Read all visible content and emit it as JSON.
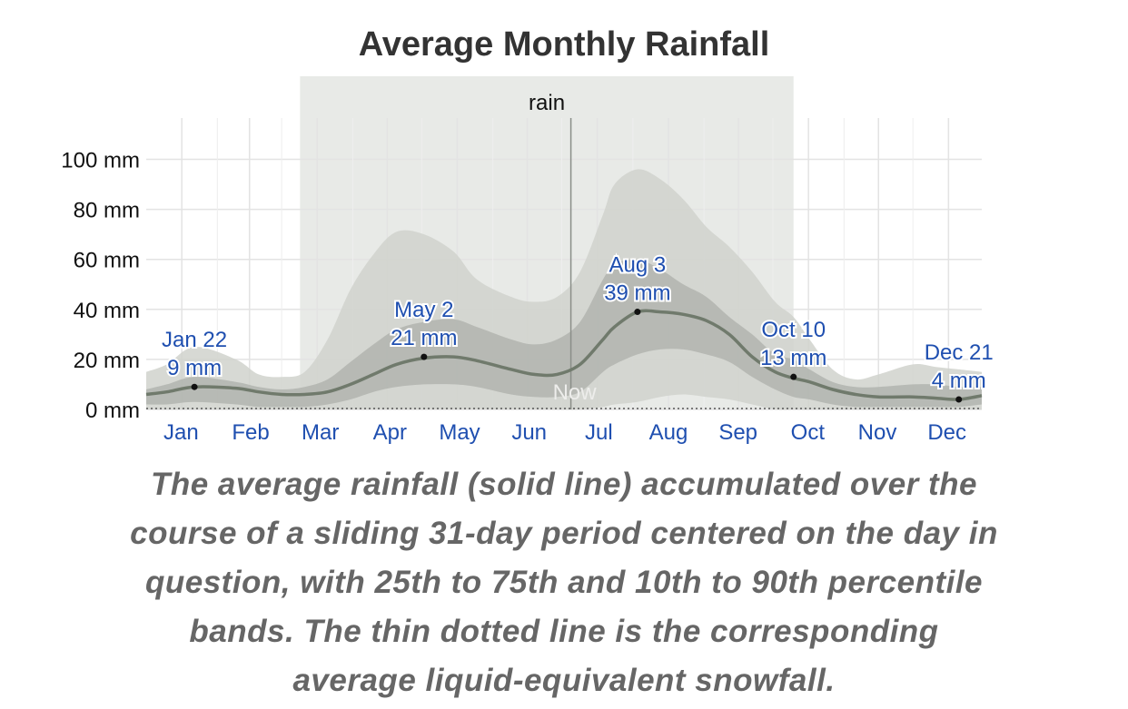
{
  "chart_data": {
    "type": "area",
    "title": "Average Monthly Rainfall",
    "season_label": "rain",
    "now_label": "Now",
    "months": [
      "Jan",
      "Feb",
      "Mar",
      "Apr",
      "May",
      "Jun",
      "Jul",
      "Aug",
      "Sep",
      "Oct",
      "Nov",
      "Dec"
    ],
    "y_ticks": [
      "100 mm",
      "80 mm",
      "60 mm",
      "40 mm",
      "20 mm",
      "0 mm"
    ],
    "ylim": [
      0,
      115
    ],
    "x_unit": "day of year",
    "rain_season_days": [
      68,
      283
    ],
    "now_day": 186,
    "grid": true,
    "colors": {
      "band_10_90": "#d0d2cd",
      "band_25_75": "#afb2ad",
      "mean_line": "#707a6c",
      "season_band": "#e8eae7",
      "annotation_text": "#1f4fb0",
      "grid": "#e3e3e3"
    },
    "series": [
      {
        "name": "average rainfall",
        "x": [
          1,
          10,
          22,
          40,
          50,
          60,
          70,
          80,
          90,
          100,
          110,
          122,
          135,
          145,
          160,
          170,
          180,
          190,
          200,
          205,
          215,
          225,
          235,
          245,
          255,
          265,
          275,
          283,
          290,
          300,
          310,
          320,
          335,
          345,
          355,
          365
        ],
        "values": [
          6,
          7,
          9,
          8.5,
          7,
          6,
          6,
          7,
          10,
          14,
          18,
          20.5,
          21,
          19.5,
          16,
          14,
          14,
          18,
          28,
          33,
          39,
          39,
          38,
          35.5,
          30,
          21,
          15,
          12.5,
          11,
          8,
          6,
          5,
          5,
          4.5,
          4,
          5.5
        ]
      },
      {
        "name": "10th-90th percentile (upper)",
        "x": [
          1,
          10,
          22,
          40,
          50,
          60,
          70,
          80,
          90,
          100,
          110,
          122,
          135,
          145,
          160,
          170,
          180,
          190,
          200,
          205,
          215,
          225,
          235,
          245,
          255,
          265,
          275,
          283,
          290,
          300,
          310,
          320,
          335,
          345,
          355,
          365
        ],
        "values": [
          15,
          18,
          25,
          20,
          14,
          13,
          15,
          28,
          48,
          62,
          71,
          70,
          63,
          52,
          45,
          43,
          45,
          55,
          78,
          90,
          96,
          92,
          84,
          73,
          65,
          55,
          43,
          37,
          28,
          16,
          12,
          14,
          18,
          17,
          16,
          15
        ]
      },
      {
        "name": "25th-75th percentile (upper)",
        "x": [
          1,
          10,
          22,
          40,
          50,
          60,
          70,
          80,
          90,
          100,
          110,
          122,
          135,
          145,
          160,
          170,
          180,
          190,
          200,
          205,
          215,
          225,
          235,
          245,
          255,
          265,
          275,
          283,
          290,
          300,
          310,
          320,
          335,
          345,
          355,
          365
        ],
        "values": [
          8,
          10,
          13,
          11,
          9,
          8,
          9,
          12,
          19,
          26,
          32,
          35,
          36,
          33,
          28,
          26,
          28,
          35,
          52,
          58,
          60,
          56,
          50,
          45,
          37,
          30,
          22,
          20,
          16,
          11,
          9,
          9,
          10,
          10,
          9,
          9
        ]
      },
      {
        "name": "25th percentile (lower)",
        "x": [
          1,
          10,
          22,
          40,
          50,
          60,
          70,
          80,
          90,
          100,
          110,
          122,
          135,
          145,
          160,
          170,
          180,
          190,
          200,
          205,
          215,
          225,
          235,
          245,
          255,
          265,
          275,
          283,
          290,
          300,
          310,
          320,
          335,
          345,
          355,
          365
        ],
        "values": [
          2,
          2,
          3,
          2,
          1,
          1,
          1,
          2,
          4,
          7,
          9,
          10,
          10,
          9,
          6,
          5,
          5,
          7,
          15,
          18,
          22,
          24,
          24,
          22,
          19,
          13,
          8,
          5,
          4,
          2,
          1,
          1,
          1,
          1,
          1,
          2
        ]
      },
      {
        "name": "10th percentile (lower)",
        "x": [
          1,
          10,
          22,
          40,
          50,
          60,
          70,
          80,
          90,
          100,
          110,
          122,
          135,
          145,
          160,
          170,
          180,
          190,
          200,
          205,
          215,
          225,
          235,
          245,
          255,
          265,
          275,
          283,
          290,
          300,
          310,
          320,
          335,
          345,
          355,
          365
        ],
        "values": [
          0,
          0,
          0,
          0,
          0,
          0,
          0,
          0,
          0,
          0,
          0,
          0,
          0,
          0,
          0,
          0,
          0,
          0,
          1,
          2,
          3,
          5,
          6,
          5,
          4,
          2,
          0,
          0,
          0,
          0,
          0,
          0,
          0,
          0,
          0,
          0
        ]
      },
      {
        "name": "average liquid-equivalent snowfall",
        "x": [
          1,
          365
        ],
        "values": [
          0,
          0
        ]
      }
    ],
    "annotations": [
      {
        "date": "Jan 22",
        "value_label": "9 mm",
        "day": 22,
        "value": 9
      },
      {
        "date": "May 2",
        "value_label": "21 mm",
        "day": 122,
        "value": 21
      },
      {
        "date": "Aug 3",
        "value_label": "39 mm",
        "day": 215,
        "value": 39
      },
      {
        "date": "Oct 10",
        "value_label": "13 mm",
        "day": 283,
        "value": 13
      },
      {
        "date": "Dec 21",
        "value_label": "4 mm",
        "day": 355,
        "value": 4
      }
    ]
  },
  "caption": "The average rainfall (solid line) accumulated over the course of a sliding 31-day period centered on the day in question, with 25th to 75th and 10th to 90th percentile bands. The thin dotted line is the corresponding average liquid-equivalent snowfall."
}
